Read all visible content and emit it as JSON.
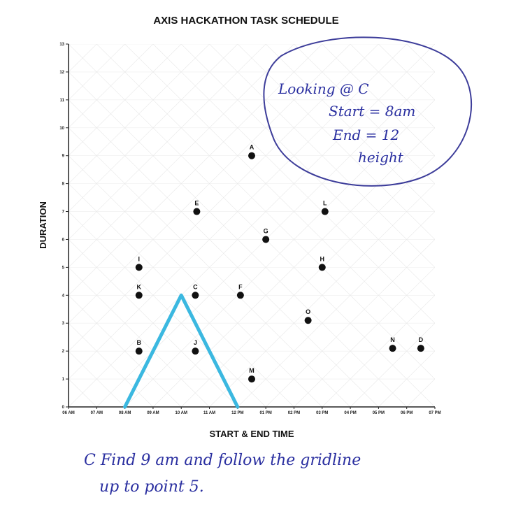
{
  "chart_data": {
    "type": "scatter",
    "title": "AXIS HACKATHON TASK SCHEDULE",
    "xlabel": "START & END TIME",
    "ylabel": "DURATION",
    "x_ticks": [
      "06 AM",
      "07 AM",
      "08 AM",
      "09 AM",
      "10 AM",
      "11 AM",
      "12 PM",
      "01 PM",
      "02 PM",
      "03 PM",
      "04 PM",
      "05 PM",
      "06 PM",
      "07 PM"
    ],
    "xlim": [
      0,
      13
    ],
    "ylim": [
      0,
      13
    ],
    "y_ticks": [
      0,
      1,
      2,
      3,
      4,
      5,
      6,
      7,
      8,
      9,
      10,
      11,
      12,
      13
    ],
    "grid": "triangular",
    "points": [
      {
        "label": "A",
        "x": 6.5,
        "y": 9
      },
      {
        "label": "B",
        "x": 2.5,
        "y": 2
      },
      {
        "label": "C",
        "x": 4.5,
        "y": 4
      },
      {
        "label": "D",
        "x": 12.5,
        "y": 2.1
      },
      {
        "label": "E",
        "x": 4.55,
        "y": 7
      },
      {
        "label": "F",
        "x": 6.1,
        "y": 4
      },
      {
        "label": "G",
        "x": 7.0,
        "y": 6
      },
      {
        "label": "H",
        "x": 9.0,
        "y": 5
      },
      {
        "label": "I",
        "x": 2.5,
        "y": 5
      },
      {
        "label": "J",
        "x": 4.5,
        "y": 2
      },
      {
        "label": "K",
        "x": 2.5,
        "y": 4
      },
      {
        "label": "L",
        "x": 9.1,
        "y": 7
      },
      {
        "label": "M",
        "x": 6.5,
        "y": 1
      },
      {
        "label": "N",
        "x": 11.5,
        "y": 2.1
      },
      {
        "label": "O",
        "x": 8.5,
        "y": 3.1
      }
    ],
    "highlight": {
      "label": "C",
      "start": "08 AM",
      "end": "12 PM",
      "peak": 4,
      "color": "#3bb8e0"
    }
  },
  "annotations": {
    "circle_note": [
      "Looking @ C",
      "Start = 8am",
      "End = 12",
      "height"
    ],
    "bottom_note": [
      "C Find 9 am and follow the gridline",
      "up to point 5."
    ],
    "ink_color": "#2a2fa0"
  }
}
